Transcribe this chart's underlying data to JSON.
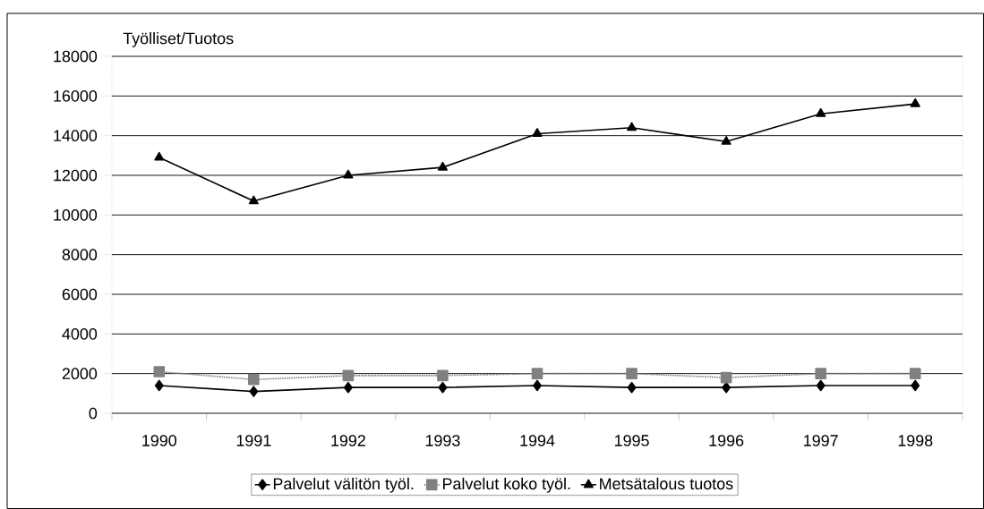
{
  "chart_data": {
    "type": "line",
    "ylabel": "Työlliset/Tuotos",
    "categories": [
      "1990",
      "1991",
      "1992",
      "1993",
      "1994",
      "1995",
      "1996",
      "1997",
      "1998"
    ],
    "series": [
      {
        "name": "Palvelut välitön työl.",
        "color": "#000000",
        "marker": "diamond",
        "line_style": "solid",
        "values": [
          1400,
          1100,
          1300,
          1300,
          1400,
          1300,
          1300,
          1400,
          1400
        ]
      },
      {
        "name": "Palvelut koko työl.",
        "color": "#808080",
        "marker": "square",
        "line_style": "dotted",
        "values": [
          2100,
          1700,
          1900,
          1900,
          2000,
          2000,
          1800,
          2000,
          2000
        ]
      },
      {
        "name": "Metsätalous tuotos",
        "color": "#000000",
        "marker": "triangle",
        "line_style": "solid",
        "values": [
          12900,
          10700,
          12000,
          12400,
          14100,
          14400,
          13700,
          15100,
          15600
        ]
      }
    ],
    "ylim": [
      0,
      18000
    ],
    "yticks": [
      0,
      2000,
      4000,
      6000,
      8000,
      10000,
      12000,
      14000,
      16000,
      18000
    ],
    "grid": "y",
    "legend": "bottom"
  }
}
